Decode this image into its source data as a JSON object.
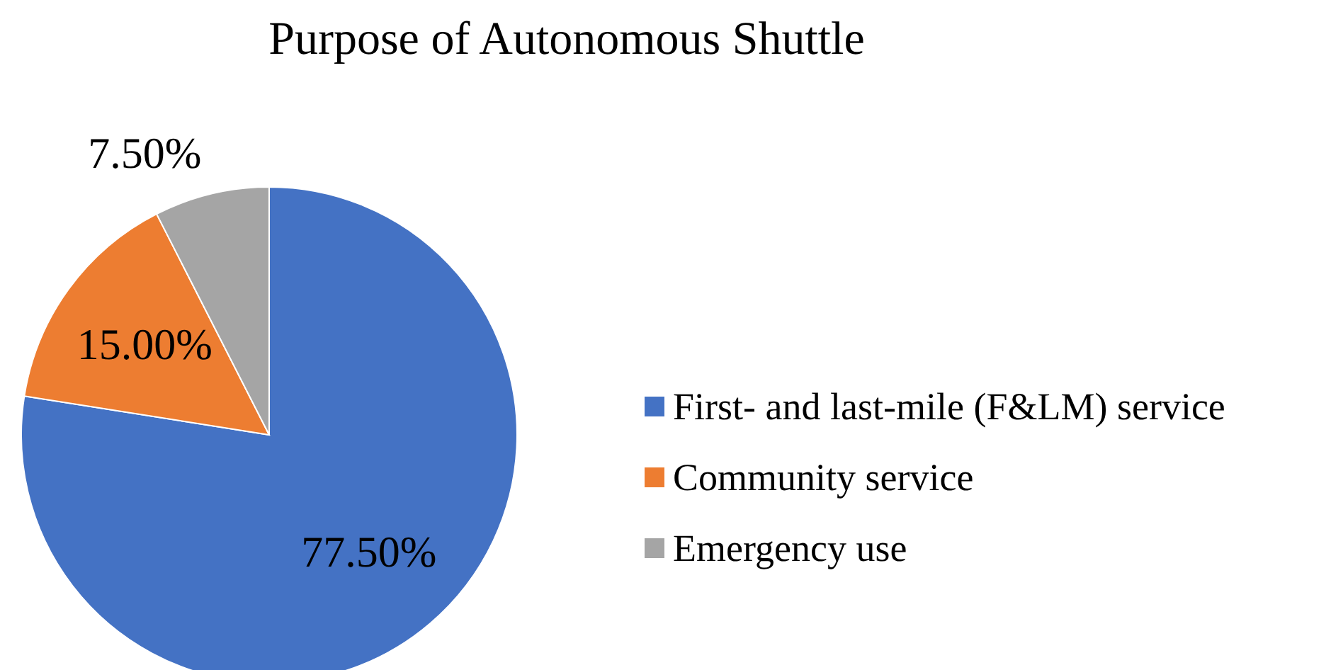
{
  "chart_data": {
    "type": "pie",
    "title": "Purpose of Autonomous Shuttle",
    "categories": [
      "First- and last-mile (F&LM) service",
      "Community service",
      "Emergency use"
    ],
    "values": [
      77.5,
      15,
      7.5
    ],
    "colors": [
      "#4472c4",
      "#ed7d31",
      "#a5a5a5"
    ],
    "value_labels": [
      "77.50%",
      "15.00%",
      "7.50%"
    ],
    "legend": "right"
  }
}
